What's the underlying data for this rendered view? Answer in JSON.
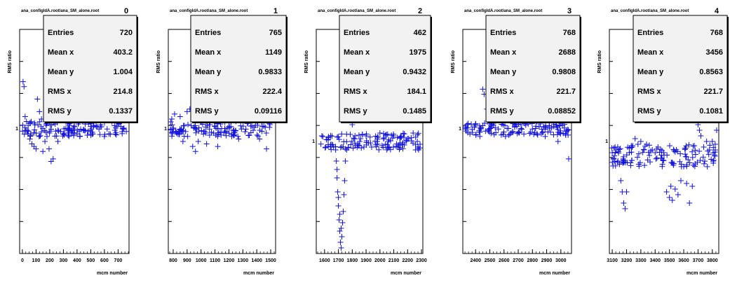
{
  "window_title": "ana_configIdA.root/ana_SM_alone.root",
  "marker_color": "#1010dd",
  "chart_data": [
    {
      "type": "scatter",
      "title": "ana_configIdA.root/ana_SM_alone.root",
      "histo_index": "0",
      "xlabel": "mcm number",
      "ylabel": "RMS ratio",
      "xlim": [
        -20,
        780
      ],
      "ylim": [
        0.5,
        1.4
      ],
      "xticks": [
        "0",
        "100",
        "200",
        "300",
        "400",
        "500",
        "600",
        "700"
      ],
      "xtick_values": [
        0,
        100,
        200,
        300,
        400,
        500,
        600,
        700
      ],
      "ytick_labels": [
        "1"
      ],
      "ytick_values": [
        1.0
      ],
      "stats": [
        {
          "label": "Entries",
          "value": "720"
        },
        {
          "label": "Mean x",
          "value": "403.2"
        },
        {
          "label": "Mean y",
          "value": "1.004"
        },
        {
          "label": "RMS x",
          "value": "214.8"
        },
        {
          "label": "RMS y",
          "value": "0.1337"
        }
      ],
      "points": [
        [
          5,
          1.19
        ],
        [
          12,
          1.17
        ],
        [
          20,
          1.05
        ],
        [
          30,
          1.03
        ],
        [
          40,
          0.98
        ],
        [
          55,
          0.96
        ],
        [
          70,
          0.94
        ],
        [
          85,
          0.93
        ],
        [
          100,
          0.92
        ],
        [
          110,
          1.12
        ],
        [
          125,
          1.07
        ],
        [
          140,
          1.04
        ],
        [
          150,
          0.91
        ],
        [
          165,
          0.95
        ],
        [
          180,
          0.97
        ],
        [
          195,
          0.92
        ],
        [
          210,
          0.87
        ],
        [
          225,
          0.88
        ],
        [
          240,
          1.02
        ],
        [
          260,
          0.95
        ],
        [
          280,
          0.99
        ],
        [
          300,
          0.98
        ],
        [
          320,
          1.07
        ],
        [
          340,
          0.97
        ],
        [
          360,
          0.99
        ],
        [
          380,
          1.01
        ],
        [
          400,
          0.98
        ],
        [
          420,
          0.97
        ],
        [
          440,
          1.03
        ],
        [
          460,
          1.02
        ],
        [
          480,
          0.99
        ],
        [
          500,
          1.01
        ],
        [
          520,
          1.16
        ],
        [
          540,
          1.05
        ],
        [
          560,
          1.0
        ],
        [
          580,
          1.04
        ],
        [
          600,
          0.97
        ],
        [
          620,
          1.0
        ],
        [
          640,
          1.04
        ],
        [
          660,
          1.06
        ],
        [
          680,
          0.98
        ],
        [
          700,
          1.02
        ],
        [
          720,
          1.01
        ],
        [
          740,
          1.0
        ],
        [
          760,
          0.99
        ]
      ],
      "band_center": 1.0,
      "band_spread": 0.03
    },
    {
      "type": "scatter",
      "title": "ana_configIdA.root/ana_SM_alone.root",
      "histo_index": "1",
      "xlabel": "mcm number",
      "ylabel": "RMS ratio",
      "xlim": [
        765,
        1535
      ],
      "ylim": [
        0.5,
        1.4
      ],
      "xticks": [
        "800",
        "900",
        "1000",
        "1100",
        "1200",
        "1300",
        "1400",
        "1500"
      ],
      "xtick_values": [
        800,
        900,
        1000,
        1100,
        1200,
        1300,
        1400,
        1500
      ],
      "ytick_labels": [
        "1"
      ],
      "ytick_values": [
        1.0
      ],
      "stats": [
        {
          "label": "Entries",
          "value": "765"
        },
        {
          "label": "Mean x",
          "value": "1149"
        },
        {
          "label": "Mean y",
          "value": "0.9833"
        },
        {
          "label": "RMS x",
          "value": "222.4"
        },
        {
          "label": "RMS y",
          "value": "0.09116"
        }
      ],
      "points": [
        [
          790,
          1.04
        ],
        [
          810,
          1.06
        ],
        [
          830,
          0.98
        ],
        [
          850,
          1.05
        ],
        [
          870,
          0.95
        ],
        [
          900,
          1.07
        ],
        [
          920,
          1.08
        ],
        [
          940,
          0.93
        ],
        [
          960,
          0.91
        ],
        [
          980,
          0.95
        ],
        [
          1000,
          1.03
        ],
        [
          1020,
          0.99
        ],
        [
          1040,
          0.94
        ],
        [
          1060,
          1.0
        ],
        [
          1080,
          1.12
        ],
        [
          1100,
          1.15
        ],
        [
          1120,
          0.93
        ],
        [
          1140,
          1.02
        ],
        [
          1160,
          1.06
        ],
        [
          1180,
          0.99
        ],
        [
          1200,
          1.01
        ],
        [
          1220,
          0.97
        ],
        [
          1250,
          1.03
        ],
        [
          1270,
          0.96
        ],
        [
          1290,
          1.0
        ],
        [
          1320,
          1.17
        ],
        [
          1340,
          1.12
        ],
        [
          1360,
          1.09
        ],
        [
          1380,
          1.08
        ],
        [
          1400,
          1.04
        ],
        [
          1420,
          0.96
        ],
        [
          1450,
          1.06
        ],
        [
          1470,
          0.92
        ],
        [
          1490,
          1.03
        ],
        [
          1510,
          1.05
        ]
      ],
      "band_center": 1.0,
      "band_spread": 0.03
    },
    {
      "type": "scatter",
      "title": "ana_configIdA.root/ana_SM_alone.root",
      "histo_index": "2",
      "xlabel": "mcm number",
      "ylabel": "RMS ratio",
      "xlim": [
        1540,
        2310
      ],
      "ylim": [
        0.6,
        1.4
      ],
      "xticks": [
        "1600",
        "1700",
        "1800",
        "1900",
        "2000",
        "2100",
        "2200",
        "2300"
      ],
      "xtick_values": [
        1600,
        1700,
        1800,
        1900,
        2000,
        2100,
        2200,
        2300
      ],
      "ytick_labels": [
        "1"
      ],
      "ytick_values": [
        1.0
      ],
      "stats": [
        {
          "label": "Entries",
          "value": "462"
        },
        {
          "label": "Mean x",
          "value": "1975"
        },
        {
          "label": "Mean y",
          "value": "0.9432"
        },
        {
          "label": "RMS x",
          "value": "184.1"
        },
        {
          "label": "RMS y",
          "value": "0.1485"
        }
      ],
      "points": [
        [
          1680,
          0.97
        ],
        [
          1685,
          0.93
        ],
        [
          1690,
          0.87
        ],
        [
          1695,
          0.82
        ],
        [
          1700,
          0.77
        ],
        [
          1705,
          0.72
        ],
        [
          1710,
          0.68
        ],
        [
          1715,
          0.64
        ],
        [
          1720,
          0.62
        ],
        [
          1725,
          0.66
        ],
        [
          1730,
          0.71
        ],
        [
          1735,
          0.75
        ],
        [
          1740,
          0.81
        ],
        [
          1745,
          0.86
        ],
        [
          1750,
          0.93
        ],
        [
          1760,
          0.97
        ],
        [
          1800,
          1.06
        ],
        [
          1820,
          1.02
        ],
        [
          1840,
          0.99
        ],
        [
          1860,
          1.01
        ],
        [
          1900,
          1.02
        ],
        [
          1940,
          0.98
        ],
        [
          1980,
          1.0
        ],
        [
          2000,
          1.03
        ],
        [
          2040,
          0.99
        ],
        [
          2060,
          1.0
        ],
        [
          2100,
          1.02
        ],
        [
          2130,
          0.98
        ],
        [
          2160,
          0.99
        ],
        [
          2200,
          1.01
        ],
        [
          2240,
          1.03
        ],
        [
          2270,
          1.0
        ],
        [
          2290,
          0.99
        ],
        [
          1700,
          0.8
        ],
        [
          1710,
          0.74
        ],
        [
          1690,
          0.9
        ],
        [
          1720,
          0.69
        ]
      ],
      "band_center": 1.0,
      "band_spread": 0.03
    },
    {
      "type": "scatter",
      "title": "ana_configIdA.root/ana_SM_alone.root",
      "histo_index": "3",
      "xlabel": "mcm number",
      "ylabel": "RMS ratio",
      "xlim": [
        2310,
        3075
      ],
      "ylim": [
        0.5,
        1.4
      ],
      "xticks": [
        "2400",
        "2500",
        "2600",
        "2700",
        "2800",
        "2900",
        "3000"
      ],
      "xtick_values": [
        2400,
        2500,
        2600,
        2700,
        2800,
        2900,
        3000
      ],
      "ytick_labels": [
        "1"
      ],
      "ytick_values": [
        1.0
      ],
      "stats": [
        {
          "label": "Entries",
          "value": "768"
        },
        {
          "label": "Mean x",
          "value": "2688"
        },
        {
          "label": "Mean y",
          "value": "0.9808"
        },
        {
          "label": "RMS x",
          "value": "221.7"
        },
        {
          "label": "RMS y",
          "value": "0.08852"
        }
      ],
      "points": [
        [
          2330,
          1.0
        ],
        [
          2360,
          0.98
        ],
        [
          2400,
          1.02
        ],
        [
          2430,
          0.97
        ],
        [
          2450,
          1.16
        ],
        [
          2460,
          1.14
        ],
        [
          2480,
          1.08
        ],
        [
          2500,
          1.05
        ],
        [
          2530,
          1.12
        ],
        [
          2560,
          1.0
        ],
        [
          2590,
          1.03
        ],
        [
          2610,
          0.97
        ],
        [
          2640,
          1.06
        ],
        [
          2660,
          0.99
        ],
        [
          2690,
          1.01
        ],
        [
          2720,
          1.07
        ],
        [
          2740,
          0.98
        ],
        [
          2770,
          1.02
        ],
        [
          2800,
          1.0
        ],
        [
          2830,
          1.03
        ],
        [
          2860,
          1.12
        ],
        [
          2890,
          0.97
        ],
        [
          2920,
          1.05
        ],
        [
          2950,
          1.01
        ],
        [
          2980,
          0.95
        ],
        [
          3000,
          1.08
        ],
        [
          3020,
          1.06
        ],
        [
          3040,
          0.99
        ],
        [
          3055,
          0.88
        ]
      ],
      "band_center": 1.0,
      "band_spread": 0.025
    },
    {
      "type": "scatter",
      "title": "ana_configIdA.root/ana_SM_alone.root",
      "histo_index": "4",
      "xlabel": "mcm number",
      "ylabel": "RMS ratio",
      "xlim": [
        3080,
        3845
      ],
      "ylim": [
        0.6,
        1.4
      ],
      "xticks": [
        "3100",
        "3200",
        "3300",
        "3400",
        "3500",
        "3600",
        "3700",
        "3800"
      ],
      "xtick_values": [
        3100,
        3200,
        3300,
        3400,
        3500,
        3600,
        3700,
        3800
      ],
      "ytick_labels": [
        "1"
      ],
      "ytick_values": [
        1.0
      ],
      "stats": [
        {
          "label": "Entries",
          "value": "768"
        },
        {
          "label": "Mean x",
          "value": "3456"
        },
        {
          "label": "Mean y",
          "value": "0.8563"
        },
        {
          "label": "RMS x",
          "value": "221.7"
        },
        {
          "label": "RMS y",
          "value": "0.1081"
        }
      ],
      "points": [
        [
          3100,
          0.96
        ],
        [
          3110,
          0.94
        ],
        [
          3120,
          0.98
        ],
        [
          3130,
          0.97
        ],
        [
          3140,
          0.93
        ],
        [
          3160,
          0.86
        ],
        [
          3170,
          0.82
        ],
        [
          3180,
          0.78
        ],
        [
          3190,
          0.76
        ],
        [
          3200,
          0.82
        ],
        [
          3220,
          0.96
        ],
        [
          3240,
          0.98
        ],
        [
          3260,
          1.01
        ],
        [
          3280,
          0.99
        ],
        [
          3300,
          1.0
        ],
        [
          3320,
          0.97
        ],
        [
          3340,
          0.99
        ],
        [
          3360,
          0.95
        ],
        [
          3380,
          0.97
        ],
        [
          3400,
          0.96
        ],
        [
          3420,
          0.98
        ],
        [
          3440,
          0.94
        ],
        [
          3460,
          0.96
        ],
        [
          3480,
          0.82
        ],
        [
          3500,
          0.8
        ],
        [
          3510,
          0.84
        ],
        [
          3520,
          0.79
        ],
        [
          3540,
          0.83
        ],
        [
          3560,
          0.81
        ],
        [
          3580,
          0.86
        ],
        [
          3600,
          0.91
        ],
        [
          3620,
          0.85
        ],
        [
          3640,
          0.78
        ],
        [
          3660,
          0.84
        ],
        [
          3680,
          0.92
        ],
        [
          3700,
          1.06
        ],
        [
          3710,
          1.04
        ],
        [
          3720,
          1.02
        ],
        [
          3740,
          0.98
        ],
        [
          3760,
          1.0
        ],
        [
          3780,
          0.97
        ],
        [
          3800,
          1.0
        ],
        [
          3820,
          0.99
        ],
        [
          3830,
          1.04
        ]
      ],
      "band_center": 0.95,
      "band_spread": 0.04
    }
  ]
}
